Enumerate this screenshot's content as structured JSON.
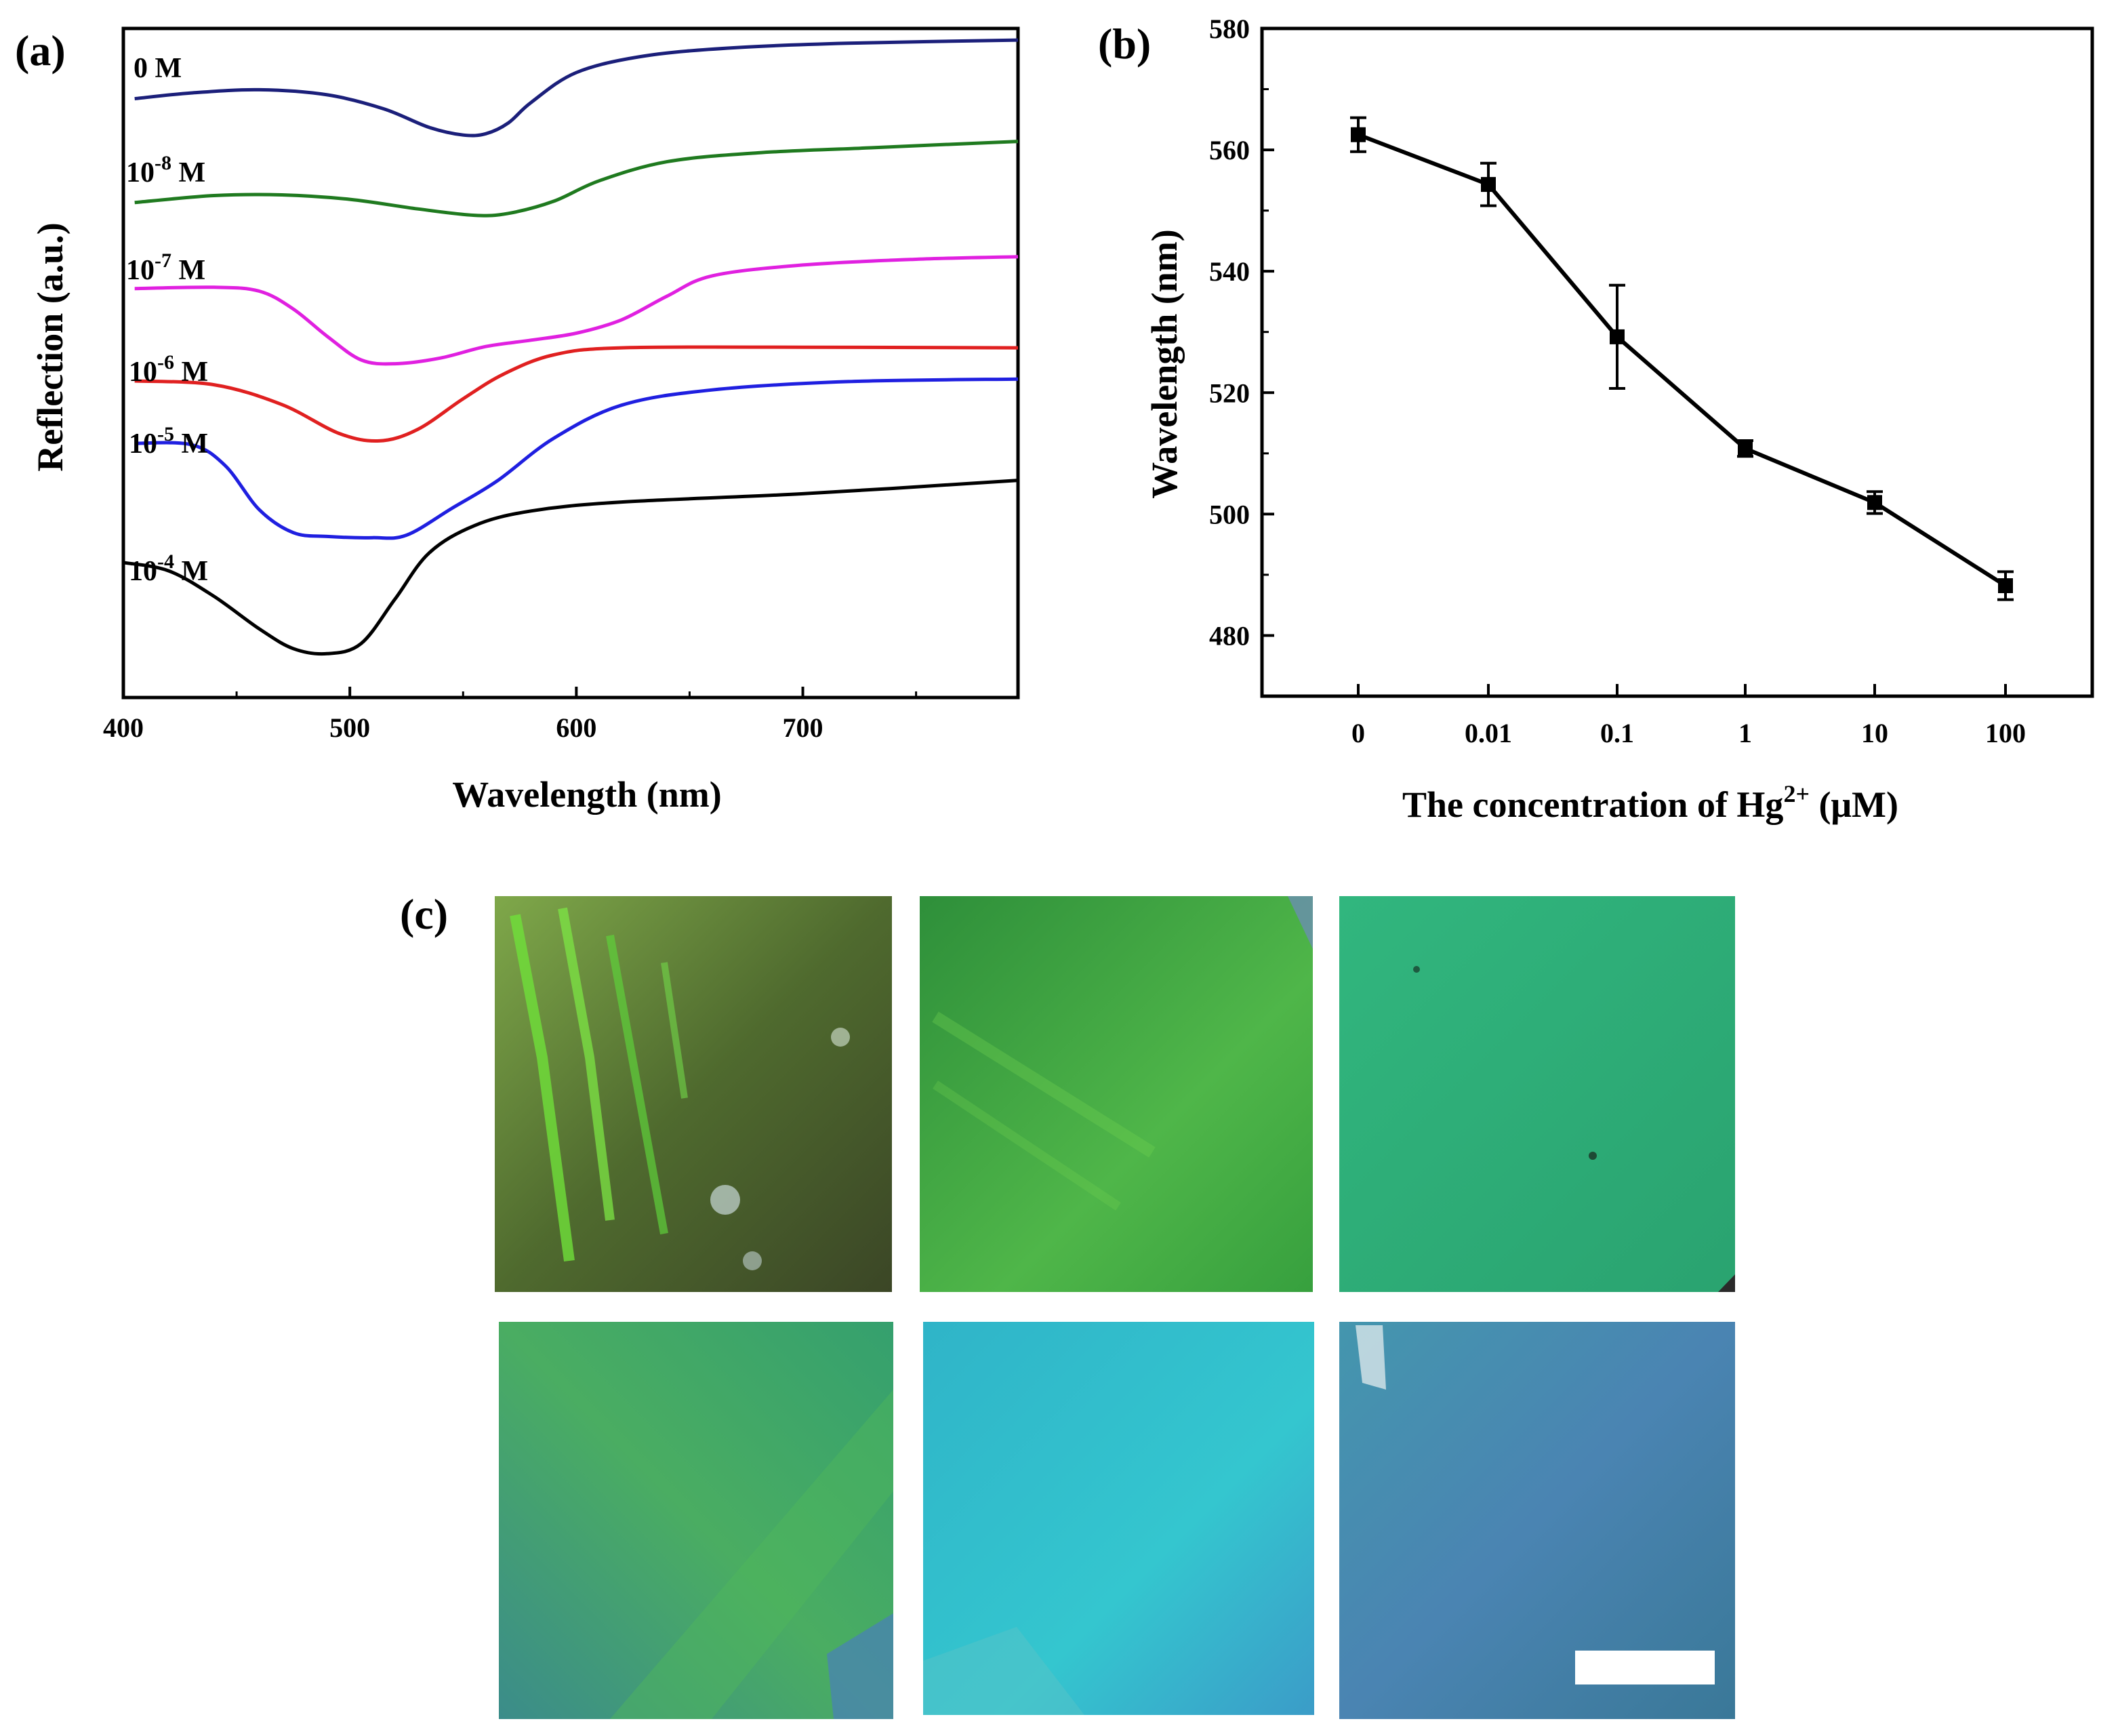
{
  "panels": {
    "a": "(a)",
    "b": "(b)",
    "c": "(c)"
  },
  "chart_data": [
    {
      "id": "a",
      "type": "line",
      "xlabel": "Wavelength (nm)",
      "ylabel": "Reflection (a.u.)",
      "xlim": [
        400,
        795
      ],
      "xticks": [
        400,
        500,
        600,
        700
      ],
      "yticks": [],
      "ylim": [
        0,
        100
      ],
      "series": [
        {
          "name": "0 M",
          "label_base": "0 M",
          "label_exp": "",
          "label_unit": "",
          "color": "#1b1f7a",
          "x": [
            405,
            430,
            460,
            490,
            515,
            535,
            550,
            560,
            570,
            580,
            600,
            630,
            670,
            720,
            795
          ],
          "y": [
            89.3,
            90.2,
            90.7,
            89.9,
            87.7,
            84.8,
            83.6,
            83.8,
            85.5,
            88.7,
            93.4,
            96.0,
            97.3,
            98.0,
            98.5
          ]
        },
        {
          "name": "10-8 M",
          "label_base": "10",
          "label_exp": "-8",
          "label_unit": " M",
          "color": "#1f7a1f",
          "x": [
            405,
            440,
            470,
            500,
            530,
            555,
            570,
            590,
            610,
            640,
            680,
            730,
            795
          ],
          "y": [
            73.0,
            74.1,
            74.2,
            73.5,
            72.0,
            71.0,
            71.3,
            73.2,
            76.4,
            79.4,
            80.8,
            81.6,
            82.6
          ]
        },
        {
          "name": "10-7 M",
          "label_base": "10",
          "label_exp": "-7",
          "label_unit": " M",
          "color": "#e020e0",
          "x": [
            405,
            440,
            460,
            475,
            490,
            505,
            520,
            540,
            560,
            580,
            600,
            620,
            640,
            660,
            700,
            750,
            795
          ],
          "y": [
            59.5,
            59.7,
            59.1,
            56.3,
            52.0,
            48.3,
            47.7,
            48.6,
            50.4,
            51.4,
            52.5,
            54.6,
            58.3,
            61.5,
            63.2,
            64.1,
            64.5
          ]
        },
        {
          "name": "10-6 M",
          "label_base": "10",
          "label_exp": "-6",
          "label_unit": " M",
          "color": "#e02020",
          "x": [
            405,
            440,
            470,
            495,
            513,
            530,
            550,
            568,
            590,
            620,
            700,
            795
          ],
          "y": [
            45.0,
            44.4,
            41.3,
            36.8,
            35.6,
            37.4,
            42.2,
            46.1,
            49.1,
            50.2,
            50.3,
            50.2
          ]
        },
        {
          "name": "10-5 M",
          "label_base": "10",
          "label_exp": "-5",
          "label_unit": " M",
          "color": "#1f1fe0",
          "x": [
            405,
            430,
            445,
            460,
            475,
            490,
            510,
            525,
            545,
            565,
            590,
            620,
            660,
            720,
            795
          ],
          "y": [
            35.2,
            35.0,
            31.7,
            24.8,
            21.2,
            20.6,
            20.4,
            20.8,
            25.0,
            29.3,
            36.0,
            41.2,
            43.6,
            44.9,
            45.3
          ]
        },
        {
          "name": "10-4 M",
          "label_base": "10",
          "label_exp": "-4",
          "label_unit": " M",
          "color": "#000000",
          "x": [
            400,
            420,
            440,
            460,
            475,
            490,
            505,
            520,
            535,
            555,
            580,
            620,
            700,
            795
          ],
          "y": [
            16.5,
            15.2,
            11.2,
            6.1,
            3.0,
            2.2,
            3.8,
            10.8,
            18.0,
            22.3,
            24.6,
            26.0,
            27.3,
            29.4
          ]
        }
      ]
    },
    {
      "id": "b",
      "type": "line",
      "xlabel_main": "The concentration of Hg",
      "xlabel_sup": "2+",
      "xlabel_unit": " (μM)",
      "ylabel": "Wavelength (nm)",
      "categories": [
        "0",
        "0.01",
        "0.1",
        "1",
        "10",
        "100"
      ],
      "values": [
        562.5,
        554.3,
        529.2,
        510.8,
        501.9,
        488.2
      ],
      "errors": [
        2.8,
        3.5,
        8.5,
        1.3,
        1.8,
        2.3
      ],
      "ylim": [
        470,
        580
      ],
      "yticks": [
        480,
        500,
        520,
        540,
        560,
        580
      ],
      "ytick_labels": [
        "480",
        "500",
        "520",
        "540",
        "560",
        "580"
      ]
    }
  ],
  "photos": [
    {
      "name": "photo-0M",
      "colors": [
        "#4f6e2c",
        "#6ea83a",
        "#3c4a25"
      ]
    },
    {
      "name": "photo-10-8M",
      "colors": [
        "#2f9a3e",
        "#52b84a",
        "#3aa03f"
      ]
    },
    {
      "name": "photo-10-7M",
      "colors": [
        "#2fb07a",
        "#3cc088",
        "#2a9e6c"
      ]
    },
    {
      "name": "photo-10-6M",
      "colors": [
        "#3d9f80",
        "#47ad6a",
        "#3a8e88"
      ]
    },
    {
      "name": "photo-10-5M",
      "colors": [
        "#2eb9cc",
        "#34c7cf",
        "#3a9ec4"
      ]
    },
    {
      "name": "photo-10-4M",
      "colors": [
        "#3f8ea8",
        "#4a83b4",
        "#3a7596"
      ]
    }
  ]
}
